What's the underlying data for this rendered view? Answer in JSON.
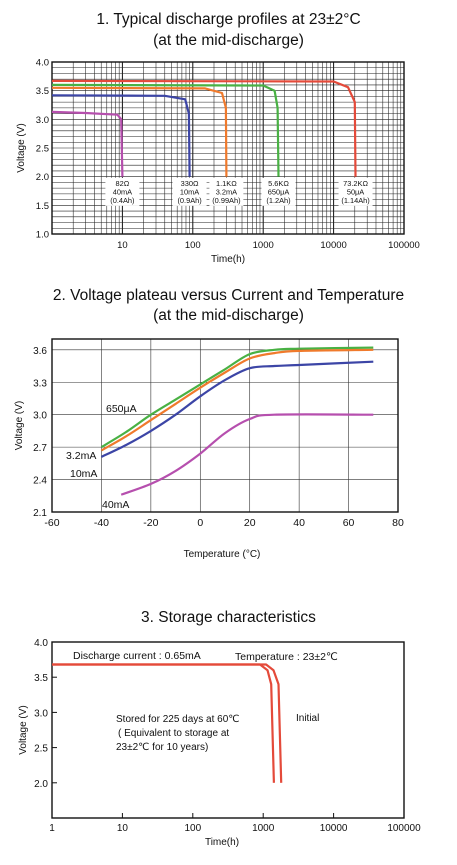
{
  "chart_data": [
    {
      "type": "line",
      "title": "1. Typical discharge profiles at 23±2°C",
      "subtitle": "(at  the mid-discharge)",
      "xlabel": "Time(h)",
      "ylabel": "Voltage (V)",
      "xscale": "log",
      "xlim": [
        1,
        100000
      ],
      "ylim": [
        1.0,
        4.0
      ],
      "x_ticks": [
        "1",
        "10",
        "100",
        "1000",
        "10000",
        "100000"
      ],
      "y_ticks": [
        "1.0",
        "1.5",
        "2.0",
        "2.5",
        "3.0",
        "3.5",
        "4.0"
      ],
      "grid": true,
      "series": [
        {
          "label_lines": [
            "82Ω",
            "40mA",
            "(0.4Ah)"
          ],
          "color": "#b64fae",
          "points": [
            [
              1,
              3.13
            ],
            [
              3,
              3.11
            ],
            [
              8.5,
              3.08
            ],
            [
              9.6,
              3.0
            ],
            [
              10,
              2.0
            ]
          ]
        },
        {
          "label_lines": [
            "330Ω",
            "10mA",
            "(0.9Ah)"
          ],
          "color": "#3c45a6",
          "points": [
            [
              1,
              3.42
            ],
            [
              40,
              3.41
            ],
            [
              78,
              3.35
            ],
            [
              88,
              3.1
            ],
            [
              90,
              2.0
            ]
          ]
        },
        {
          "label_lines": [
            "1.1KΩ",
            "3.2mA",
            "(0.99Ah)"
          ],
          "color": "#f07a2c",
          "points": [
            [
              1,
              3.55
            ],
            [
              150,
              3.54
            ],
            [
              260,
              3.46
            ],
            [
              295,
              3.2
            ],
            [
              300,
              2.0
            ]
          ]
        },
        {
          "label_lines": [
            "5.6KΩ",
            "650μA",
            "(1.2Ah)"
          ],
          "color": "#49b144",
          "points": [
            [
              1,
              3.6
            ],
            [
              1000,
              3.59
            ],
            [
              1450,
              3.5
            ],
            [
              1600,
              3.2
            ],
            [
              1650,
              2.0
            ]
          ]
        },
        {
          "label_lines": [
            "73.2KΩ",
            "50μA",
            "(1.14Ah)"
          ],
          "color": "#e44a3a",
          "points": [
            [
              1,
              3.67
            ],
            [
              10000,
              3.66
            ],
            [
              16000,
              3.56
            ],
            [
              20000,
              3.3
            ],
            [
              20500,
              2.0
            ]
          ]
        }
      ]
    },
    {
      "type": "line",
      "title": "2. Voltage plateau versus Current and Temperature",
      "subtitle": "(at the mid-discharge)",
      "xlabel": "Temperature (°C)",
      "ylabel": "Voltage (V)",
      "xlim": [
        -60,
        80
      ],
      "ylim": [
        2.1,
        3.7
      ],
      "x_ticks": [
        "-60",
        "-40",
        "-20",
        "0",
        "20",
        "40",
        "60",
        "80"
      ],
      "y_ticks": [
        "2.1",
        "2.4",
        "2.7",
        "3.0",
        "3.3",
        "3.6"
      ],
      "grid": true,
      "series": [
        {
          "name": "650μA",
          "color": "#49b144",
          "points": [
            [
              -40,
              2.7
            ],
            [
              -30,
              2.84
            ],
            [
              -20,
              3.0
            ],
            [
              -10,
              3.14
            ],
            [
              0,
              3.28
            ],
            [
              10,
              3.42
            ],
            [
              20,
              3.56
            ],
            [
              30,
              3.6
            ],
            [
              40,
              3.61
            ],
            [
              70,
              3.62
            ]
          ]
        },
        {
          "name": "3.2mA",
          "color": "#f07a2c",
          "points": [
            [
              -40,
              2.67
            ],
            [
              -30,
              2.8
            ],
            [
              -20,
              2.95
            ],
            [
              -10,
              3.1
            ],
            [
              0,
              3.25
            ],
            [
              10,
              3.39
            ],
            [
              20,
              3.52
            ],
            [
              30,
              3.57
            ],
            [
              40,
              3.59
            ],
            [
              70,
              3.6
            ]
          ]
        },
        {
          "name": "10mA",
          "color": "#3c45a6",
          "points": [
            [
              -40,
              2.61
            ],
            [
              -30,
              2.72
            ],
            [
              -20,
              2.85
            ],
            [
              -10,
              3.0
            ],
            [
              0,
              3.17
            ],
            [
              10,
              3.32
            ],
            [
              20,
              3.43
            ],
            [
              30,
              3.45
            ],
            [
              40,
              3.46
            ],
            [
              70,
              3.49
            ]
          ]
        },
        {
          "name": "40mA",
          "color": "#b64fae",
          "points": [
            [
              -32,
              2.26
            ],
            [
              -20,
              2.36
            ],
            [
              -10,
              2.48
            ],
            [
              0,
              2.64
            ],
            [
              10,
              2.83
            ],
            [
              20,
              2.96
            ],
            [
              30,
              3.0
            ],
            [
              70,
              3.0
            ]
          ]
        }
      ]
    },
    {
      "type": "line",
      "title": "3. Storage characteristics",
      "xlabel": "Time(h)",
      "ylabel": "Voltage (V)",
      "xscale": "log",
      "xlim": [
        1,
        100000
      ],
      "ylim": [
        1.5,
        4.0
      ],
      "x_ticks": [
        "1",
        "10",
        "100",
        "1000",
        "10000",
        "100000"
      ],
      "y_ticks": [
        "2.0",
        "2.5",
        "3.0",
        "3.5",
        "4.0"
      ],
      "grid": false,
      "annotations": [
        "Discharge current : 0.65mA",
        "Temperature : 23±2℃",
        "Stored for 225 days at 60℃",
        "( Equivalent to storage at",
        "23±2℃ for 10 years)",
        "Initial"
      ],
      "series": [
        {
          "name": "Stored for 225 days at 60℃",
          "color": "#e44a3a",
          "points": [
            [
              1,
              3.68
            ],
            [
              900,
              3.68
            ],
            [
              1150,
              3.6
            ],
            [
              1300,
              3.4
            ],
            [
              1420,
              2.0
            ]
          ]
        },
        {
          "name": "Initial",
          "color": "#e44a3a",
          "points": [
            [
              1,
              3.68
            ],
            [
              1100,
              3.68
            ],
            [
              1400,
              3.6
            ],
            [
              1650,
              3.4
            ],
            [
              1800,
              2.0
            ]
          ]
        }
      ]
    }
  ]
}
